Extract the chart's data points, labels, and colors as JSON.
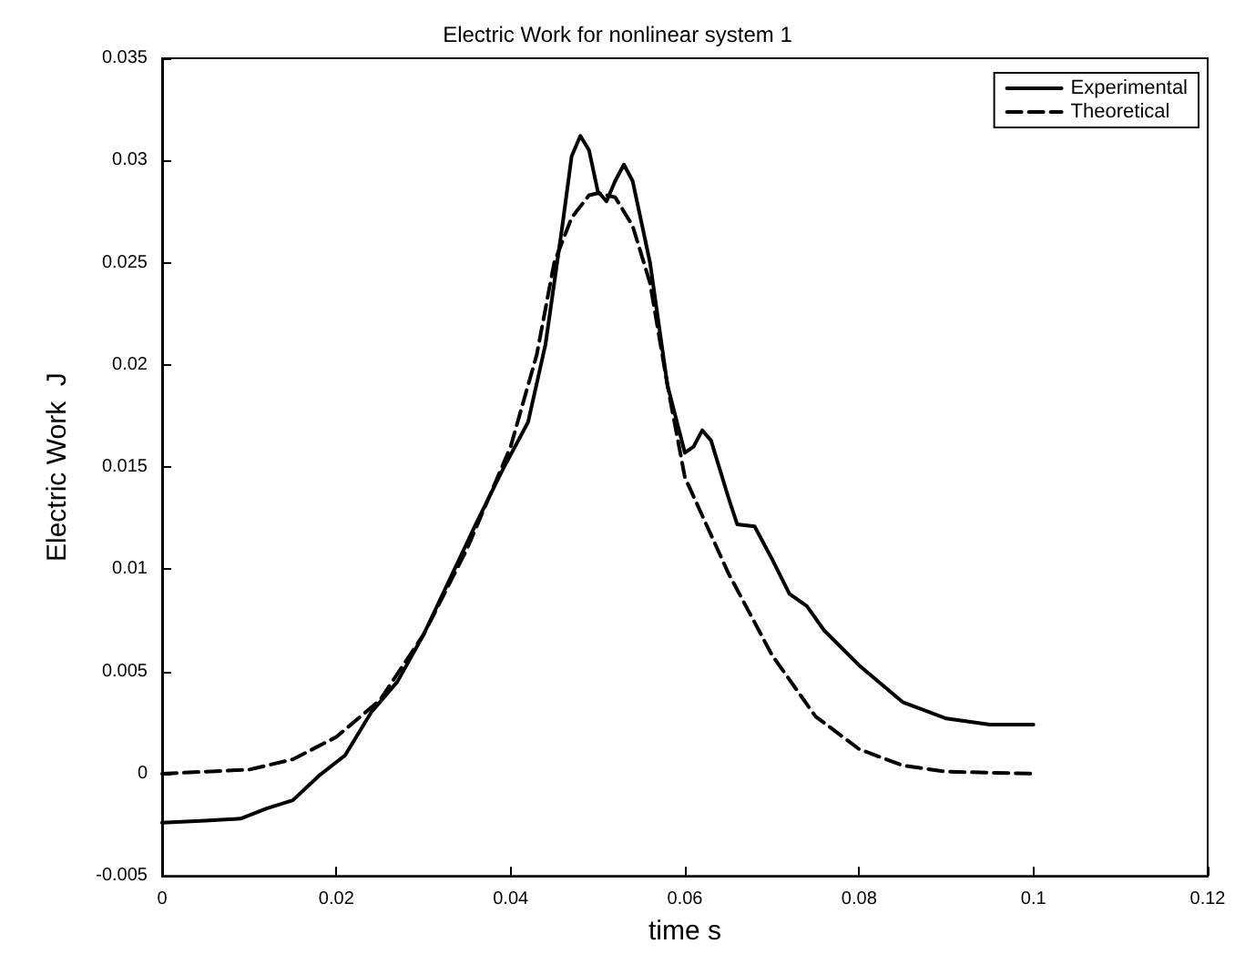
{
  "chart_data": {
    "type": "line",
    "title": "Electric Work for nonlinear system 1",
    "xlabel": "time s",
    "ylabel": "Electric Work  J",
    "xlim": [
      0,
      0.12
    ],
    "xticks": [
      0,
      0.02,
      0.04,
      0.06,
      0.08,
      0.1,
      0.12
    ],
    "ylim": [
      -0.005,
      0.035
    ],
    "yticks": [
      -0.005,
      0,
      0.005,
      0.01,
      0.015,
      0.02,
      0.025,
      0.03,
      0.035
    ],
    "grid": false,
    "legend": "top right",
    "marker": "none",
    "series": [
      {
        "name": "Experimental",
        "color": "#000000",
        "line_style": "solid",
        "x": [
          0,
          0.005,
          0.009,
          0.012,
          0.015,
          0.018,
          0.021,
          0.024,
          0.027,
          0.03,
          0.033,
          0.036,
          0.039,
          0.042,
          0.044,
          0.046,
          0.047,
          0.048,
          0.049,
          0.05,
          0.051,
          0.052,
          0.053,
          0.054,
          0.056,
          0.058,
          0.06,
          0.061,
          0.062,
          0.063,
          0.065,
          0.066,
          0.068,
          0.07,
          0.072,
          0.074,
          0.076,
          0.08,
          0.085,
          0.09,
          0.095,
          0.1
        ],
        "values": [
          -0.0024,
          -0.0023,
          -0.0022,
          -0.0017,
          -0.0013,
          -0.0001,
          0.0009,
          0.003,
          0.0045,
          0.0068,
          0.0095,
          0.0122,
          0.0148,
          0.0172,
          0.021,
          0.027,
          0.0302,
          0.0312,
          0.0305,
          0.0285,
          0.028,
          0.029,
          0.0298,
          0.029,
          0.025,
          0.019,
          0.0157,
          0.016,
          0.0168,
          0.0163,
          0.0135,
          0.0122,
          0.0121,
          0.0105,
          0.0088,
          0.0082,
          0.007,
          0.0053,
          0.0035,
          0.0027,
          0.0024,
          0.0024
        ]
      },
      {
        "name": "Theoretical",
        "color": "#000000",
        "line_style": "dashed",
        "x": [
          0,
          0.01,
          0.015,
          0.02,
          0.025,
          0.03,
          0.035,
          0.04,
          0.043,
          0.045,
          0.047,
          0.049,
          0.05,
          0.052,
          0.054,
          0.056,
          0.058,
          0.06,
          0.065,
          0.07,
          0.075,
          0.08,
          0.085,
          0.09,
          0.1
        ],
        "values": [
          0,
          0.0002,
          0.0007,
          0.0018,
          0.0036,
          0.0068,
          0.011,
          0.016,
          0.0205,
          0.025,
          0.0272,
          0.0283,
          0.0284,
          0.0282,
          0.0268,
          0.024,
          0.019,
          0.0145,
          0.0098,
          0.0058,
          0.0028,
          0.0012,
          0.0004,
          0.0001,
          0
        ]
      }
    ]
  }
}
